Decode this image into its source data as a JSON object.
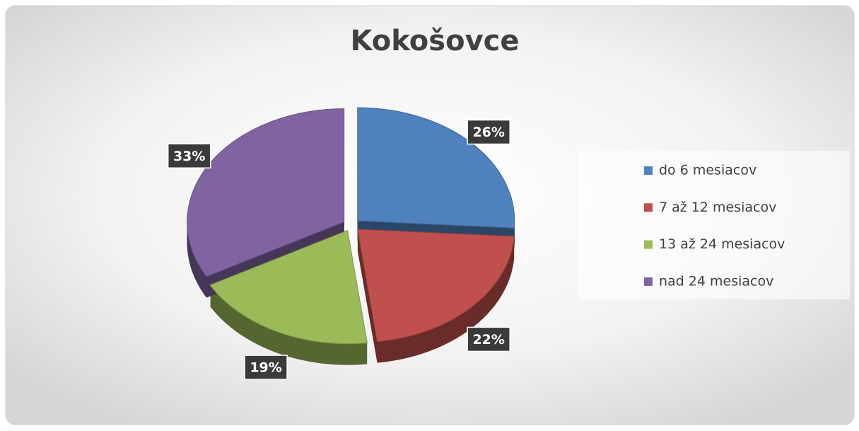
{
  "chart_data": {
    "type": "pie",
    "title": "Kokošovce",
    "categories": [
      "do 6 mesiacov",
      "7 až 12 mesiacov",
      "13 až 24 mesiacov",
      "nad 24 mesiacov"
    ],
    "values": [
      26,
      22,
      19,
      33
    ],
    "value_labels": [
      "26%",
      "22%",
      "19%",
      "33%"
    ],
    "colors": [
      "#4f81bd",
      "#c0504d",
      "#9bbb59",
      "#8064a2"
    ],
    "legend": "right"
  }
}
